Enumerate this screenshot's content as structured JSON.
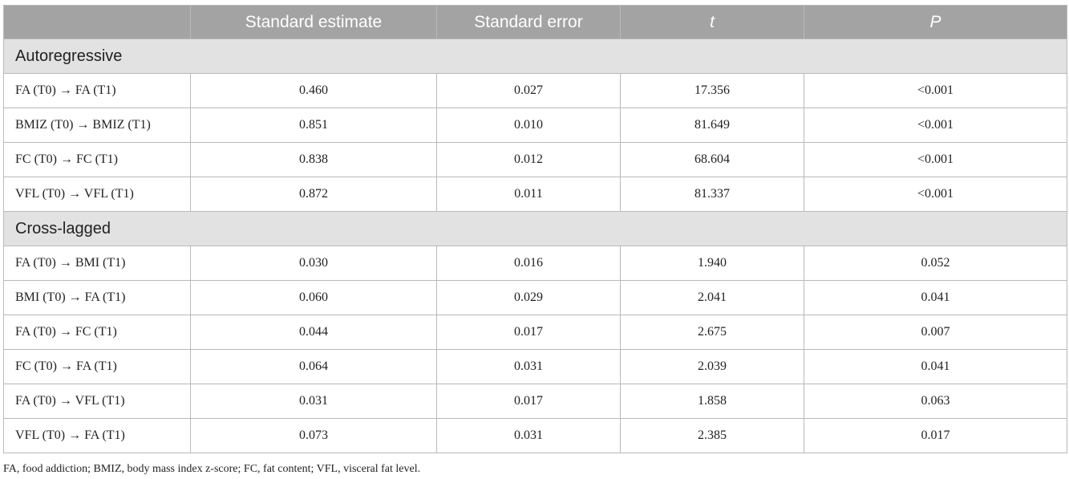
{
  "table": {
    "headers": [
      "",
      "Standard estimate",
      "Standard error",
      "t",
      "P"
    ],
    "sections": [
      {
        "title": "Autoregressive",
        "rows": [
          [
            "FA (T0) → FA (T1)",
            "0.460",
            "0.027",
            "17.356",
            "<0.001"
          ],
          [
            "BMIZ (T0) → BMIZ (T1)",
            "0.851",
            "0.010",
            "81.649",
            "<0.001"
          ],
          [
            "FC (T0) → FC (T1)",
            "0.838",
            "0.012",
            "68.604",
            "<0.001"
          ],
          [
            "VFL (T0) → VFL (T1)",
            "0.872",
            "0.011",
            "81.337",
            "<0.001"
          ]
        ]
      },
      {
        "title": "Cross-lagged",
        "rows": [
          [
            "FA (T0) → BMI (T1)",
            "0.030",
            "0.016",
            "1.940",
            "0.052"
          ],
          [
            "BMI (T0) → FA (T1)",
            "0.060",
            "0.029",
            "2.041",
            "0.041"
          ],
          [
            "FA (T0) → FC (T1)",
            "0.044",
            "0.017",
            "2.675",
            "0.007"
          ],
          [
            "FC (T0) → FA (T1)",
            "0.064",
            "0.031",
            "2.039",
            "0.041"
          ],
          [
            "FA (T0) → VFL (T1)",
            "0.031",
            "0.017",
            "1.858",
            "0.063"
          ],
          [
            "VFL (T0) → FA (T1)",
            "0.073",
            "0.031",
            "2.385",
            "0.017"
          ]
        ]
      }
    ]
  },
  "footnote": "FA, food addiction; BMIZ, body mass index z-score; FC, fat content; VFL, visceral fat level.",
  "colors": {
    "header_bg": "#a3a3a3",
    "header_text": "#ffffff",
    "section_bg": "#e2e2e2",
    "border": "#b9b9b9"
  }
}
